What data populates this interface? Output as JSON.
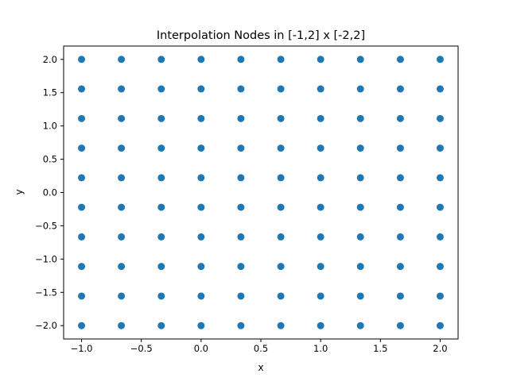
{
  "chart_data": {
    "type": "scatter",
    "title": "Interpolation Nodes in [-1,2] x [-2,2]",
    "xlabel": "x",
    "ylabel": "y",
    "xlim": [
      -1.15,
      2.15
    ],
    "ylim": [
      -2.2,
      2.2
    ],
    "x_ticks": [
      -1.0,
      -0.5,
      0.0,
      0.5,
      1.0,
      1.5,
      2.0
    ],
    "x_tick_labels": [
      "−1.0",
      "−0.5",
      "0.0",
      "0.5",
      "1.0",
      "1.5",
      "2.0"
    ],
    "y_ticks": [
      -2.0,
      -1.5,
      -1.0,
      -0.5,
      0.0,
      0.5,
      1.0,
      1.5,
      2.0
    ],
    "y_tick_labels": [
      "−2.0",
      "−1.5",
      "−1.0",
      "−0.5",
      "0.0",
      "0.5",
      "1.0",
      "1.5",
      "2.0"
    ],
    "grid": false,
    "legend": "none",
    "marker_color": "#1f77b4",
    "grid_x_values": [
      -1.0,
      -0.667,
      -0.333,
      0.0,
      0.333,
      0.667,
      1.0,
      1.333,
      1.667,
      2.0
    ],
    "grid_y_values": [
      -2.0,
      -1.556,
      -1.111,
      -0.667,
      -0.222,
      0.222,
      0.667,
      1.111,
      1.556,
      2.0
    ],
    "point_layout": "all 100 points form the cartesian product of grid_x_values and grid_y_values"
  }
}
